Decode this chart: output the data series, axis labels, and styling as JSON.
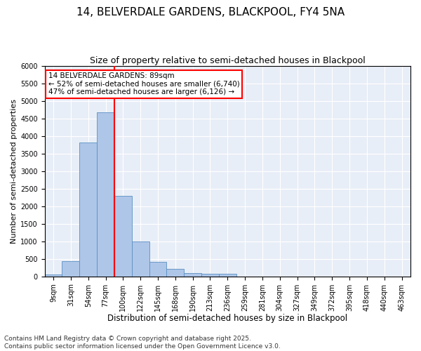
{
  "title1": "14, BELVERDALE GARDENS, BLACKPOOL, FY4 5NA",
  "title2": "Size of property relative to semi-detached houses in Blackpool",
  "xlabel": "Distribution of semi-detached houses by size in Blackpool",
  "ylabel": "Number of semi-detached properties",
  "footnote": "Contains HM Land Registry data © Crown copyright and database right 2025.\nContains public sector information licensed under the Open Government Licence v3.0.",
  "categories": [
    "9sqm",
    "31sqm",
    "54sqm",
    "77sqm",
    "100sqm",
    "122sqm",
    "145sqm",
    "168sqm",
    "190sqm",
    "213sqm",
    "236sqm",
    "259sqm",
    "281sqm",
    "304sqm",
    "327sqm",
    "349sqm",
    "372sqm",
    "395sqm",
    "418sqm",
    "440sqm",
    "463sqm"
  ],
  "bar_values": [
    50,
    430,
    3820,
    4680,
    2300,
    1000,
    420,
    210,
    100,
    65,
    65,
    0,
    0,
    0,
    0,
    0,
    0,
    0,
    0,
    0,
    0
  ],
  "bar_color": "#aec6e8",
  "bar_edge_color": "#5a8fc2",
  "vline_x": 3.5,
  "vline_color": "red",
  "annotation_text": "14 BELVERDALE GARDENS: 89sqm\n← 52% of semi-detached houses are smaller (6,740)\n47% of semi-detached houses are larger (6,126) →",
  "annotation_box_color": "white",
  "annotation_box_edge": "red",
  "ylim": [
    0,
    6000
  ],
  "yticks": [
    0,
    500,
    1000,
    1500,
    2000,
    2500,
    3000,
    3500,
    4000,
    4500,
    5000,
    5500,
    6000
  ],
  "bg_color": "#e8eef7",
  "grid_color": "white",
  "title1_fontsize": 11,
  "title2_fontsize": 9,
  "xlabel_fontsize": 8.5,
  "ylabel_fontsize": 8,
  "footnote_fontsize": 6.5,
  "annotation_fontsize": 7.5,
  "tick_fontsize": 7
}
